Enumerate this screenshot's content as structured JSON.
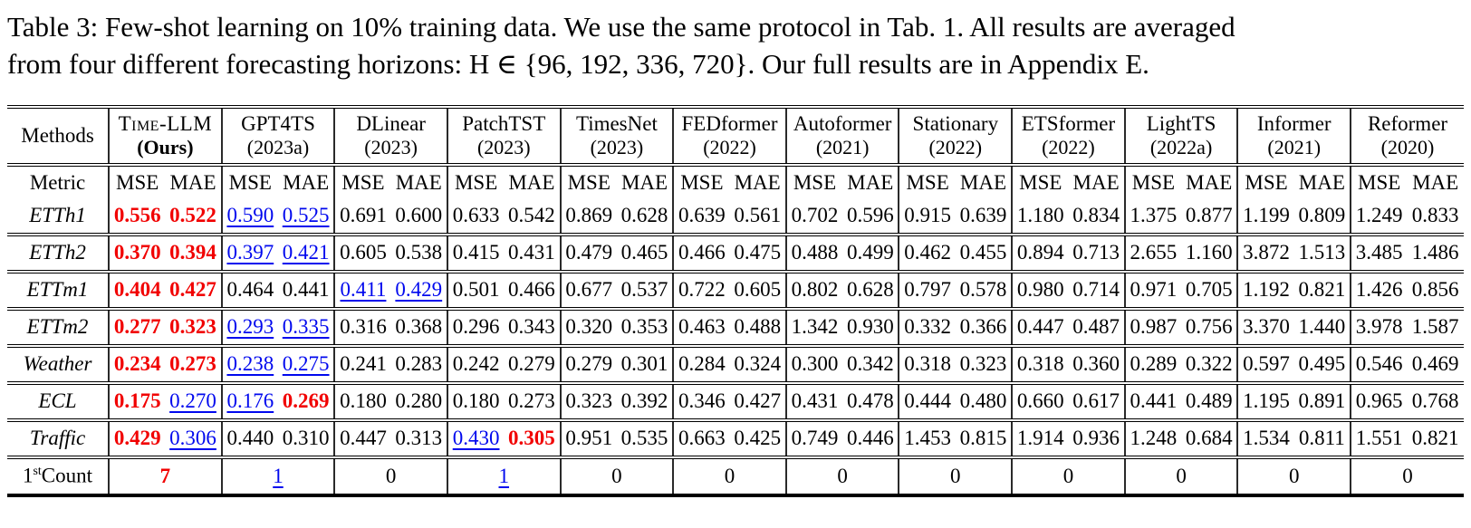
{
  "caption": {
    "lines": [
      "Table 3: Few-shot learning on 10% training data. We use the same protocol in Tab. 1. All results are averaged",
      "from four different forecasting horizons: H ∈ {96, 192, 336, 720}. Our full results are in Appendix E."
    ]
  },
  "colors": {
    "best": "#f10000",
    "second": "#0008ee"
  },
  "table": {
    "methods_label": "Methods",
    "metric_label": "Metric",
    "metrics": [
      "MSE",
      "MAE"
    ],
    "columns": [
      {
        "name": "Time-LLM",
        "year": "(Ours)",
        "smallcaps": true,
        "bold_year": true
      },
      {
        "name": "GPT4TS",
        "year": "(2023a)"
      },
      {
        "name": "DLinear",
        "year": "(2023)"
      },
      {
        "name": "PatchTST",
        "year": "(2023)"
      },
      {
        "name": "TimesNet",
        "year": "(2023)"
      },
      {
        "name": "FEDformer",
        "year": "(2022)"
      },
      {
        "name": "Autoformer",
        "year": "(2021)"
      },
      {
        "name": "Stationary",
        "year": "(2022)"
      },
      {
        "name": "ETSformer",
        "year": "(2022)"
      },
      {
        "name": "LightTS",
        "year": "(2022a)"
      },
      {
        "name": "Informer",
        "year": "(2021)"
      },
      {
        "name": "Reformer",
        "year": "(2020)"
      }
    ],
    "rows": [
      {
        "label": "ETTh1",
        "cells": [
          [
            "0.556",
            "b"
          ],
          [
            "0.522",
            "b"
          ],
          [
            "0.590",
            "s"
          ],
          [
            "0.525",
            "s"
          ],
          [
            "0.691",
            ""
          ],
          [
            "0.600",
            ""
          ],
          [
            "0.633",
            ""
          ],
          [
            "0.542",
            ""
          ],
          [
            "0.869",
            ""
          ],
          [
            "0.628",
            ""
          ],
          [
            "0.639",
            ""
          ],
          [
            "0.561",
            ""
          ],
          [
            "0.702",
            ""
          ],
          [
            "0.596",
            ""
          ],
          [
            "0.915",
            ""
          ],
          [
            "0.639",
            ""
          ],
          [
            "1.180",
            ""
          ],
          [
            "0.834",
            ""
          ],
          [
            "1.375",
            ""
          ],
          [
            "0.877",
            ""
          ],
          [
            "1.199",
            ""
          ],
          [
            "0.809",
            ""
          ],
          [
            "1.249",
            ""
          ],
          [
            "0.833",
            ""
          ]
        ]
      },
      {
        "label": "ETTh2",
        "cells": [
          [
            "0.370",
            "b"
          ],
          [
            "0.394",
            "b"
          ],
          [
            "0.397",
            "s"
          ],
          [
            "0.421",
            "s"
          ],
          [
            "0.605",
            ""
          ],
          [
            "0.538",
            ""
          ],
          [
            "0.415",
            ""
          ],
          [
            "0.431",
            ""
          ],
          [
            "0.479",
            ""
          ],
          [
            "0.465",
            ""
          ],
          [
            "0.466",
            ""
          ],
          [
            "0.475",
            ""
          ],
          [
            "0.488",
            ""
          ],
          [
            "0.499",
            ""
          ],
          [
            "0.462",
            ""
          ],
          [
            "0.455",
            ""
          ],
          [
            "0.894",
            ""
          ],
          [
            "0.713",
            ""
          ],
          [
            "2.655",
            ""
          ],
          [
            "1.160",
            ""
          ],
          [
            "3.872",
            ""
          ],
          [
            "1.513",
            ""
          ],
          [
            "3.485",
            ""
          ],
          [
            "1.486",
            ""
          ]
        ]
      },
      {
        "label": "ETTm1",
        "cells": [
          [
            "0.404",
            "b"
          ],
          [
            "0.427",
            "b"
          ],
          [
            "0.464",
            ""
          ],
          [
            "0.441",
            ""
          ],
          [
            "0.411",
            "s"
          ],
          [
            "0.429",
            "s"
          ],
          [
            "0.501",
            ""
          ],
          [
            "0.466",
            ""
          ],
          [
            "0.677",
            ""
          ],
          [
            "0.537",
            ""
          ],
          [
            "0.722",
            ""
          ],
          [
            "0.605",
            ""
          ],
          [
            "0.802",
            ""
          ],
          [
            "0.628",
            ""
          ],
          [
            "0.797",
            ""
          ],
          [
            "0.578",
            ""
          ],
          [
            "0.980",
            ""
          ],
          [
            "0.714",
            ""
          ],
          [
            "0.971",
            ""
          ],
          [
            "0.705",
            ""
          ],
          [
            "1.192",
            ""
          ],
          [
            "0.821",
            ""
          ],
          [
            "1.426",
            ""
          ],
          [
            "0.856",
            ""
          ]
        ]
      },
      {
        "label": "ETTm2",
        "cells": [
          [
            "0.277",
            "b"
          ],
          [
            "0.323",
            "b"
          ],
          [
            "0.293",
            "s"
          ],
          [
            "0.335",
            "s"
          ],
          [
            "0.316",
            ""
          ],
          [
            "0.368",
            ""
          ],
          [
            "0.296",
            ""
          ],
          [
            "0.343",
            ""
          ],
          [
            "0.320",
            ""
          ],
          [
            "0.353",
            ""
          ],
          [
            "0.463",
            ""
          ],
          [
            "0.488",
            ""
          ],
          [
            "1.342",
            ""
          ],
          [
            "0.930",
            ""
          ],
          [
            "0.332",
            ""
          ],
          [
            "0.366",
            ""
          ],
          [
            "0.447",
            ""
          ],
          [
            "0.487",
            ""
          ],
          [
            "0.987",
            ""
          ],
          [
            "0.756",
            ""
          ],
          [
            "3.370",
            ""
          ],
          [
            "1.440",
            ""
          ],
          [
            "3.978",
            ""
          ],
          [
            "1.587",
            ""
          ]
        ]
      },
      {
        "label": "Weather",
        "cells": [
          [
            "0.234",
            "b"
          ],
          [
            "0.273",
            "b"
          ],
          [
            "0.238",
            "s"
          ],
          [
            "0.275",
            "s"
          ],
          [
            "0.241",
            ""
          ],
          [
            "0.283",
            ""
          ],
          [
            "0.242",
            ""
          ],
          [
            "0.279",
            ""
          ],
          [
            "0.279",
            ""
          ],
          [
            "0.301",
            ""
          ],
          [
            "0.284",
            ""
          ],
          [
            "0.324",
            ""
          ],
          [
            "0.300",
            ""
          ],
          [
            "0.342",
            ""
          ],
          [
            "0.318",
            ""
          ],
          [
            "0.323",
            ""
          ],
          [
            "0.318",
            ""
          ],
          [
            "0.360",
            ""
          ],
          [
            "0.289",
            ""
          ],
          [
            "0.322",
            ""
          ],
          [
            "0.597",
            ""
          ],
          [
            "0.495",
            ""
          ],
          [
            "0.546",
            ""
          ],
          [
            "0.469",
            ""
          ]
        ]
      },
      {
        "label": "ECL",
        "cells": [
          [
            "0.175",
            "b"
          ],
          [
            "0.270",
            "s"
          ],
          [
            "0.176",
            "s"
          ],
          [
            "0.269",
            "b"
          ],
          [
            "0.180",
            ""
          ],
          [
            "0.280",
            ""
          ],
          [
            "0.180",
            ""
          ],
          [
            "0.273",
            ""
          ],
          [
            "0.323",
            ""
          ],
          [
            "0.392",
            ""
          ],
          [
            "0.346",
            ""
          ],
          [
            "0.427",
            ""
          ],
          [
            "0.431",
            ""
          ],
          [
            "0.478",
            ""
          ],
          [
            "0.444",
            ""
          ],
          [
            "0.480",
            ""
          ],
          [
            "0.660",
            ""
          ],
          [
            "0.617",
            ""
          ],
          [
            "0.441",
            ""
          ],
          [
            "0.489",
            ""
          ],
          [
            "1.195",
            ""
          ],
          [
            "0.891",
            ""
          ],
          [
            "0.965",
            ""
          ],
          [
            "0.768",
            ""
          ]
        ]
      },
      {
        "label": "Traffic",
        "cells": [
          [
            "0.429",
            "b"
          ],
          [
            "0.306",
            "s"
          ],
          [
            "0.440",
            ""
          ],
          [
            "0.310",
            ""
          ],
          [
            "0.447",
            ""
          ],
          [
            "0.313",
            ""
          ],
          [
            "0.430",
            "s"
          ],
          [
            "0.305",
            "b"
          ],
          [
            "0.951",
            ""
          ],
          [
            "0.535",
            ""
          ],
          [
            "0.663",
            ""
          ],
          [
            "0.425",
            ""
          ],
          [
            "0.749",
            ""
          ],
          [
            "0.446",
            ""
          ],
          [
            "1.453",
            ""
          ],
          [
            "0.815",
            ""
          ],
          [
            "1.914",
            ""
          ],
          [
            "0.936",
            ""
          ],
          [
            "1.248",
            ""
          ],
          [
            "0.684",
            ""
          ],
          [
            "1.534",
            ""
          ],
          [
            "0.811",
            ""
          ],
          [
            "1.551",
            ""
          ],
          [
            "0.821",
            ""
          ]
        ]
      }
    ],
    "count_row": {
      "label_base": "1",
      "label_sup": "st",
      "label_rest": "Count",
      "values": [
        [
          "7",
          "b"
        ],
        [
          "1",
          "s"
        ],
        [
          "0",
          ""
        ],
        [
          "1",
          "s"
        ],
        [
          "0",
          ""
        ],
        [
          "0",
          ""
        ],
        [
          "0",
          ""
        ],
        [
          "0",
          ""
        ],
        [
          "0",
          ""
        ],
        [
          "0",
          ""
        ],
        [
          "0",
          ""
        ],
        [
          "0",
          ""
        ]
      ]
    }
  }
}
